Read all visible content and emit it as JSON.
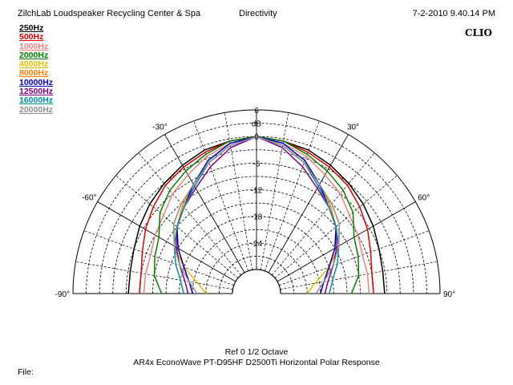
{
  "header": {
    "left": "ZilchLab Loudspeaker Recycling Center & Spa",
    "center": "Directivity",
    "right": "7-2-2010 9.40.14 PM",
    "logo": "CLIO"
  },
  "footer": {
    "line1": "Ref 0   1/2 Octave",
    "line2": "AR4x EconoWave PT-D95HF D2500Ti Horizontal Polar Response",
    "file_label": "File:"
  },
  "chart_data": {
    "type": "polar",
    "radial_label": "dB",
    "radial_ticks": [
      "6",
      "0",
      "-6",
      "-12",
      "-18",
      "-24"
    ],
    "radial_range": [
      -30,
      6
    ],
    "angle_labels": [
      "-90°",
      "-60°",
      "-30°",
      "30°",
      "60°",
      "90°"
    ],
    "angle_range": [
      -90,
      90
    ],
    "grid": true,
    "legend_position": "top-left",
    "angles_deg": [
      -90,
      -80,
      -70,
      -60,
      -50,
      -40,
      -30,
      -20,
      -10,
      0,
      10,
      20,
      30,
      40,
      50,
      60,
      70,
      80,
      90
    ],
    "series": [
      {
        "name": "250Hz",
        "color": "#000000",
        "values": [
          -6.5,
          -6.5,
          -6,
          -5,
          -4,
          -3,
          -2,
          -1,
          -0.5,
          0,
          -0.5,
          -1,
          -2,
          -3,
          -4,
          -5,
          -6,
          -6.5,
          -6.5
        ]
      },
      {
        "name": "500Hz",
        "color": "#e00000",
        "values": [
          -9,
          -9,
          -8,
          -6.5,
          -5,
          -3.5,
          -2.5,
          -1.5,
          -0.5,
          0,
          -0.5,
          -1.5,
          -2.5,
          -3.5,
          -5,
          -6.5,
          -8,
          -9,
          -9
        ]
      },
      {
        "name": "1000Hz",
        "color": "#f08080",
        "values": [
          -10,
          -10,
          -10,
          -9,
          -8,
          -6,
          -4.5,
          -2.5,
          -1,
          0,
          -1,
          -2.5,
          -4.5,
          -6,
          -8,
          -9,
          -10,
          -10,
          -10
        ]
      },
      {
        "name": "2000Hz",
        "color": "#008000",
        "values": [
          -14,
          -12,
          -11,
          -10,
          -7,
          -5,
          -3.5,
          -2,
          -0.5,
          0,
          -0.5,
          -2,
          -3.5,
          -5,
          -7,
          -10,
          -11,
          -12,
          -14
        ]
      },
      {
        "name": "4000Hz",
        "color": "#e0c000",
        "values": [
          -24,
          -22,
          -18,
          -14,
          -11,
          -9,
          -7,
          -4,
          -1.5,
          0,
          -1.5,
          -4,
          -7,
          -9,
          -11,
          -14,
          -18,
          -22,
          -24
        ]
      },
      {
        "name": "8000Hz",
        "color": "#ff8000",
        "values": [
          -21,
          -20,
          -18,
          -15,
          -12,
          -9.5,
          -7,
          -4,
          -1.5,
          0,
          -1.5,
          -4,
          -7,
          -9.5,
          -12,
          -15,
          -18,
          -20,
          -21
        ]
      },
      {
        "name": "10000Hz",
        "color": "#0000c0",
        "values": [
          -21,
          -20,
          -18,
          -15,
          -12,
          -10,
          -7,
          -3.5,
          -1,
          0,
          -1,
          -3.5,
          -7,
          -10,
          -12,
          -15,
          -18,
          -20,
          -21
        ]
      },
      {
        "name": "12500Hz",
        "color": "#800080",
        "values": [
          -20,
          -19,
          -17,
          -14.5,
          -12,
          -10,
          -8,
          -5,
          -2,
          0,
          -2,
          -5,
          -8,
          -10,
          -12,
          -14.5,
          -17,
          -19,
          -20
        ]
      },
      {
        "name": "16000Hz",
        "color": "#0090a0",
        "values": [
          -19,
          -18,
          -16,
          -14,
          -12,
          -10,
          -7.5,
          -4,
          -1.5,
          0,
          -1.5,
          -4,
          -7.5,
          -10,
          -12,
          -14,
          -16,
          -18,
          -19
        ]
      },
      {
        "name": "20000Hz",
        "color": "#909090",
        "values": [
          -22,
          -20,
          -17,
          -14,
          -11,
          -9,
          -7,
          -4,
          -1.5,
          0,
          -1.5,
          -4,
          -7,
          -9,
          -11,
          -14,
          -17,
          -20,
          -22
        ]
      }
    ]
  }
}
